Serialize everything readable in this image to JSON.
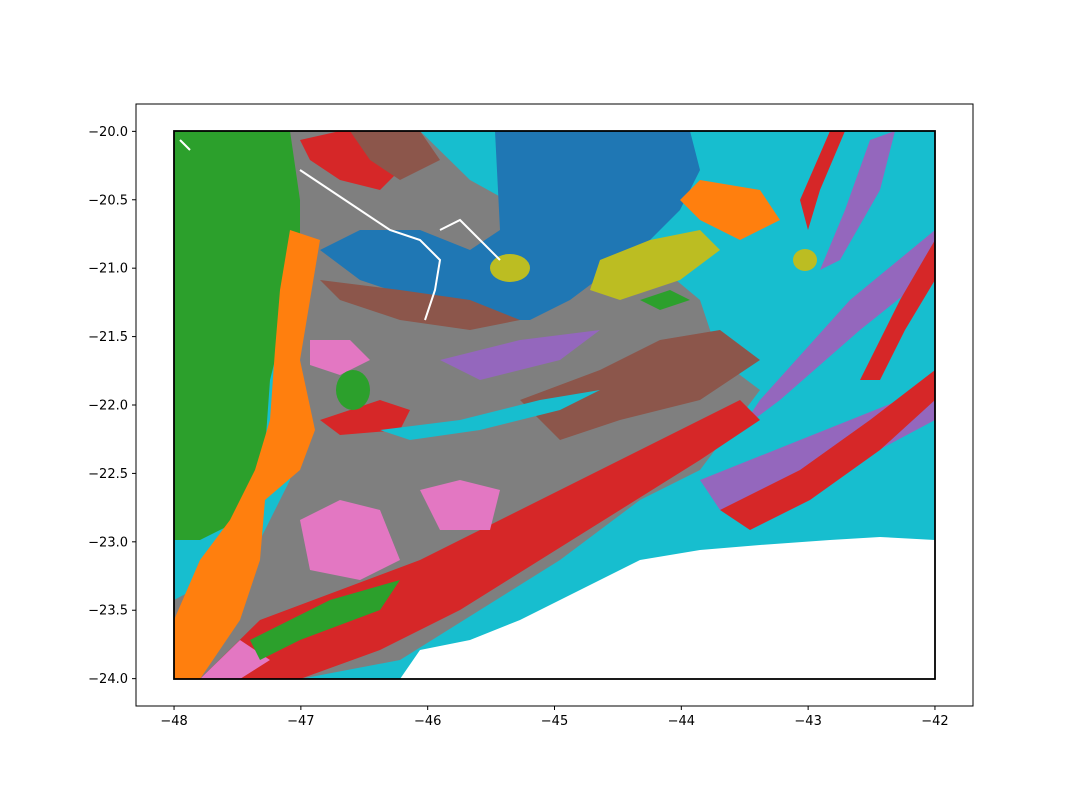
{
  "figure": {
    "title": "",
    "xlabel": "",
    "ylabel": ""
  },
  "chart_data": {
    "type": "map",
    "description_type": "geologic polygon map with categorical fill colors",
    "xlim": [
      -48.3,
      -41.7
    ],
    "ylim": [
      -24.2,
      -19.8
    ],
    "bbox_rectangle": {
      "x": [
        -48,
        -42
      ],
      "y": [
        -24,
        -20
      ]
    },
    "xticks": [
      {
        "value": -48,
        "label": "−48"
      },
      {
        "value": -47,
        "label": "−47"
      },
      {
        "value": -46,
        "label": "−46"
      },
      {
        "value": -45,
        "label": "−45"
      },
      {
        "value": -44,
        "label": "−44"
      },
      {
        "value": -43,
        "label": "−43"
      },
      {
        "value": -42,
        "label": "−42"
      }
    ],
    "yticks": [
      {
        "value": -20.0,
        "label": "−20.0"
      },
      {
        "value": -20.5,
        "label": "−20.5"
      },
      {
        "value": -21.0,
        "label": "−21.0"
      },
      {
        "value": -21.5,
        "label": "−21.5"
      },
      {
        "value": -22.0,
        "label": "−22.0"
      },
      {
        "value": -22.5,
        "label": "−22.5"
      },
      {
        "value": -23.0,
        "label": "−23.0"
      },
      {
        "value": -23.5,
        "label": "−23.5"
      },
      {
        "value": -24.0,
        "label": "−24.0"
      }
    ],
    "palette": {
      "blue": "#1f77b4",
      "orange": "#ff7f0e",
      "green": "#2ca02c",
      "red": "#d62728",
      "purple": "#9467bd",
      "brown": "#8c564b",
      "pink": "#e377c2",
      "gray": "#7f7f7f",
      "olive": "#bcbd22",
      "cyan": "#17becf"
    },
    "grid": false,
    "legend": "none"
  }
}
